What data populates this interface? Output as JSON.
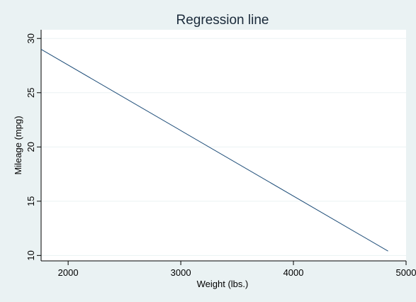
{
  "chart_data": {
    "type": "line",
    "title": "Regression line",
    "xlabel": "Weight (lbs.)",
    "ylabel": "Mileage (mpg)",
    "xlim": [
      1760,
      5000
    ],
    "ylim": [
      9.5,
      30.8
    ],
    "xticks": [
      2000,
      3000,
      4000,
      5000
    ],
    "yticks": [
      10,
      15,
      20,
      25,
      30
    ],
    "grid": true,
    "series": [
      {
        "x": [
          1760,
          4840
        ],
        "y": [
          29.0,
          10.4
        ],
        "color": "#1f4e79"
      }
    ]
  },
  "colors": {
    "background": "#eaf2f3",
    "plot_area": "#ffffff",
    "grid": "#eaf2f3",
    "line": "#1f4e79"
  }
}
